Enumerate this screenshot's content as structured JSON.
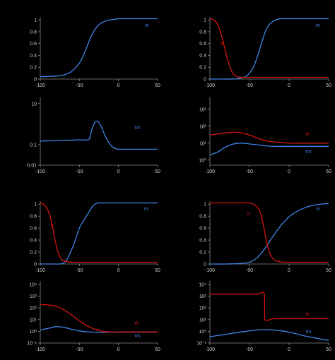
{
  "colors": {
    "blue": "#3f86e8",
    "red": "#d41414",
    "axis": "#8a8a8a",
    "text": "#cfcfcf"
  },
  "chart_data": [
    {
      "id": "p1",
      "type": "line",
      "ylim": [
        0,
        1.05
      ],
      "xlim": [
        -100,
        50
      ],
      "xticks": [
        -100,
        -50,
        0,
        50
      ],
      "yticks": [
        0,
        0.2,
        0.4,
        0.6,
        0.8,
        1
      ],
      "xtick_labels": [
        "-100",
        "-50",
        "0",
        "50"
      ],
      "ytick_labels": [
        "0",
        "0.2",
        "0.4",
        "0.6",
        "0.8",
        "1"
      ],
      "series": [
        {
          "name": "m",
          "color": "blue",
          "x": [
            -100,
            -80,
            -70,
            -60,
            -50,
            -45,
            -40,
            -35,
            -30,
            -25,
            -20,
            -15,
            -10,
            -5,
            0,
            10,
            20,
            30,
            50
          ],
          "y": [
            0.04,
            0.05,
            0.07,
            0.13,
            0.27,
            0.4,
            0.56,
            0.72,
            0.84,
            0.92,
            0.96,
            0.99,
            1.0,
            1.01,
            1.02,
            1.02,
            1.02,
            1.02,
            1.02
          ]
        }
      ]
    },
    {
      "id": "p2",
      "type": "line",
      "yscale": "log",
      "ylim": [
        0.01,
        20
      ],
      "xlim": [
        -100,
        50
      ],
      "xticks": [
        -100,
        -50,
        0,
        50
      ],
      "yticks": [
        0.01,
        0.1,
        10
      ],
      "xtick_labels": [
        "-100",
        "-50",
        "0",
        "50"
      ],
      "ytick_labels": [
        "0.01",
        "0.1",
        "10"
      ],
      "series": [
        {
          "name": "τm",
          "color": "blue",
          "x": [
            -100,
            -70,
            -50,
            -40,
            -37,
            -34,
            -31,
            -28,
            -25,
            -22,
            -19,
            -16,
            -12,
            -8,
            -4,
            0,
            10,
            20,
            30,
            50
          ],
          "y": [
            0.15,
            0.16,
            0.17,
            0.17,
            0.2,
            0.55,
            1.1,
            1.4,
            1.2,
            0.75,
            0.4,
            0.22,
            0.12,
            0.08,
            0.065,
            0.06,
            0.06,
            0.06,
            0.06,
            0.06
          ]
        }
      ]
    },
    {
      "id": "p3",
      "type": "line",
      "ylim": [
        0,
        1.05
      ],
      "xlim": [
        -100,
        50
      ],
      "xticks": [
        -100,
        -50,
        0,
        50
      ],
      "yticks": [
        0,
        0.2,
        0.4,
        0.6,
        0.8,
        1
      ],
      "xtick_labels": [
        "-100",
        "-50",
        "0",
        "50"
      ],
      "ytick_labels": [
        "0",
        "0.2",
        "0.4",
        "0.6",
        "0.8",
        "1"
      ],
      "series": [
        {
          "name": "m",
          "color": "blue",
          "x": [
            -100,
            -80,
            -75,
            -72,
            -70,
            -66,
            -62,
            -58,
            -54,
            -50,
            -45,
            -40,
            -35,
            -30,
            -25,
            -20,
            0,
            50
          ],
          "y": [
            0.0,
            0.0,
            0.0,
            0.01,
            0.02,
            0.07,
            0.18,
            0.3,
            0.45,
            0.6,
            0.72,
            0.82,
            0.93,
            1.0,
            1.02,
            1.02,
            1.02,
            1.02
          ]
        },
        {
          "name": "h",
          "color": "red",
          "x": [
            -100,
            -96,
            -92,
            -88,
            -85,
            -82,
            -79,
            -76,
            -73,
            -70,
            -65,
            -60,
            -50,
            0,
            50
          ],
          "y": [
            1.02,
            1.0,
            0.94,
            0.82,
            0.66,
            0.46,
            0.28,
            0.15,
            0.08,
            0.05,
            0.04,
            0.03,
            0.03,
            0.03,
            0.03
          ]
        }
      ]
    },
    {
      "id": "p4",
      "type": "line",
      "yscale": "log",
      "ylim": [
        0.1,
        20000
      ],
      "xlim": [
        -100,
        50
      ],
      "xticks": [
        -100,
        -50,
        0,
        50
      ],
      "yticks": [
        0.1,
        1,
        10,
        100,
        1000,
        10000
      ],
      "xtick_labels": [
        "-100",
        "-50",
        "0",
        "50"
      ],
      "ytick_labels": [
        "10⁻¹",
        "10⁰",
        "10¹",
        "10²",
        "10³",
        "10⁴"
      ],
      "series": [
        {
          "name": "τm",
          "color": "blue",
          "x": [
            -100,
            -90,
            -80,
            -70,
            -60,
            -50,
            -40,
            -30,
            -20,
            -10,
            0,
            10,
            20,
            30,
            40,
            50
          ],
          "y": [
            1.3,
            1.8,
            2.5,
            2.2,
            1.5,
            1.1,
            0.9,
            0.85,
            0.85,
            0.85,
            0.85,
            0.85,
            0.85,
            0.85,
            0.85,
            0.85
          ]
        },
        {
          "name": "τh",
          "color": "red",
          "x": [
            -100,
            -90,
            -80,
            -70,
            -60,
            -50,
            -40,
            -30,
            -20,
            -10,
            0,
            10,
            20,
            30,
            40,
            50
          ],
          "y": [
            200,
            180,
            140,
            70,
            25,
            8,
            3,
            1.5,
            1.0,
            0.9,
            0.9,
            0.9,
            0.9,
            0.9,
            0.9,
            0.9
          ]
        }
      ]
    },
    {
      "id": "p5",
      "type": "line",
      "ylim": [
        0,
        1.05
      ],
      "xlim": [
        -100,
        50
      ],
      "xticks": [
        -100,
        -50,
        0,
        50
      ],
      "yticks": [
        0,
        0.2,
        0.4,
        0.6,
        0.8,
        1
      ],
      "xtick_labels": [
        "-100",
        "-50",
        "0",
        "50"
      ],
      "ytick_labels": [
        "0",
        "0.2",
        "0.4",
        "0.6",
        "0.8",
        "1"
      ],
      "series": [
        {
          "name": "m",
          "color": "blue",
          "x": [
            -100,
            -80,
            -70,
            -65,
            -60,
            -55,
            -50,
            -45,
            -40,
            -35,
            -30,
            -25,
            -20,
            -15,
            -10,
            -5,
            0,
            50
          ],
          "y": [
            0.0,
            0.0,
            0.0,
            0.01,
            0.02,
            0.04,
            0.1,
            0.2,
            0.38,
            0.6,
            0.8,
            0.92,
            0.98,
            1.01,
            1.02,
            1.02,
            1.02,
            1.02
          ]
        },
        {
          "name": "h",
          "color": "red",
          "x": [
            -100,
            -95,
            -90,
            -85,
            -80,
            -77,
            -74,
            -71,
            -68,
            -65,
            -60,
            -50,
            -40,
            -20,
            0,
            50
          ],
          "y": [
            1.02,
            1.0,
            0.92,
            0.72,
            0.45,
            0.3,
            0.18,
            0.1,
            0.06,
            0.04,
            0.03,
            0.03,
            0.03,
            0.03,
            0.03,
            0.03
          ]
        }
      ]
    },
    {
      "id": "p6",
      "type": "line",
      "yscale": "log",
      "ylim": [
        0.5,
        5000
      ],
      "xlim": [
        -100,
        50
      ],
      "xticks": [
        -100,
        -50,
        0,
        50
      ],
      "yticks": [
        1,
        10,
        100,
        1000
      ],
      "xtick_labels": [
        "-100",
        "-50",
        "0",
        "50"
      ],
      "ytick_labels": [
        "10⁰",
        "10¹",
        "10²",
        "10³"
      ],
      "series": [
        {
          "name": "τm",
          "color": "blue",
          "x": [
            -100,
            -90,
            -80,
            -70,
            -60,
            -50,
            -40,
            -30,
            -20,
            -10,
            0,
            10,
            20,
            30,
            40,
            50
          ],
          "y": [
            2.0,
            3.0,
            6.0,
            9.0,
            10,
            9.0,
            8.0,
            7.0,
            6.5,
            6.5,
            6.5,
            6.5,
            6.5,
            6.5,
            6.5,
            6.5
          ]
        },
        {
          "name": "τh",
          "color": "red",
          "x": [
            -100,
            -90,
            -80,
            -70,
            -60,
            -50,
            -40,
            -30,
            -20,
            -10,
            0,
            10,
            20,
            30,
            40,
            50
          ],
          "y": [
            30,
            35,
            40,
            45,
            40,
            30,
            20,
            14,
            12,
            11,
            10,
            10,
            10,
            10,
            10,
            10
          ]
        }
      ]
    },
    {
      "id": "p7",
      "type": "line",
      "ylim": [
        0,
        1.05
      ],
      "xlim": [
        -100,
        50
      ],
      "xticks": [
        -100,
        -50,
        0,
        50
      ],
      "yticks": [
        0,
        0.2,
        0.4,
        0.6,
        0.8,
        1
      ],
      "xtick_labels": [
        "-100",
        "-50",
        "0",
        "50"
      ],
      "ytick_labels": [
        "0",
        "0.2",
        "0.4",
        "0.6",
        "0.8",
        "1"
      ],
      "series": [
        {
          "name": "m",
          "color": "blue",
          "x": [
            -100,
            -80,
            -60,
            -50,
            -45,
            -40,
            -35,
            -30,
            -25,
            -20,
            -15,
            -10,
            -5,
            0,
            10,
            20,
            30,
            40,
            50
          ],
          "y": [
            0.0,
            0.0,
            0.01,
            0.03,
            0.06,
            0.11,
            0.18,
            0.27,
            0.37,
            0.47,
            0.56,
            0.65,
            0.72,
            0.79,
            0.88,
            0.94,
            0.98,
            1.0,
            1.01
          ]
        },
        {
          "name": "h",
          "color": "red",
          "x": [
            -100,
            -80,
            -60,
            -50,
            -45,
            -40,
            -37,
            -34,
            -31,
            -28,
            -25,
            -22,
            -19,
            -16,
            -12,
            -8,
            -4,
            0,
            50
          ],
          "y": [
            1.02,
            1.02,
            1.02,
            1.02,
            1.0,
            0.95,
            0.88,
            0.75,
            0.55,
            0.35,
            0.2,
            0.12,
            0.07,
            0.05,
            0.04,
            0.03,
            0.03,
            0.03,
            0.03
          ]
        }
      ]
    },
    {
      "id": "p8",
      "type": "line",
      "yscale": "log",
      "ylim": [
        0.1,
        20000
      ],
      "xlim": [
        -100,
        50
      ],
      "xticks": [
        -100,
        -50,
        0,
        50
      ],
      "yticks": [
        0.1,
        1,
        10,
        100,
        1000,
        10000
      ],
      "xtick_labels": [
        "-100",
        "-50",
        "0",
        "50"
      ],
      "ytick_labels": [
        "10⁻¹",
        "10⁰",
        "10¹",
        "10²",
        "10³",
        "10⁴"
      ],
      "series": [
        {
          "name": "τm",
          "color": "blue",
          "x": [
            -100,
            -80,
            -60,
            -40,
            -30,
            -20,
            -10,
            0,
            10,
            20,
            30,
            40,
            50
          ],
          "y": [
            0.35,
            0.55,
            0.9,
            1.3,
            1.4,
            1.3,
            1.1,
            0.85,
            0.6,
            0.4,
            0.3,
            0.22,
            0.17
          ]
        },
        {
          "name": "τh",
          "color": "red",
          "x": [
            -100,
            -90,
            -80,
            -70,
            -60,
            -50,
            -40,
            -31,
            -30.9,
            -20,
            -10,
            0,
            10,
            20,
            30,
            40,
            50
          ],
          "y": [
            1500,
            1500,
            1500,
            1500,
            1500,
            1500,
            1500,
            1500,
            12,
            12,
            12,
            12,
            12,
            12,
            12,
            12,
            12
          ]
        }
      ]
    }
  ]
}
